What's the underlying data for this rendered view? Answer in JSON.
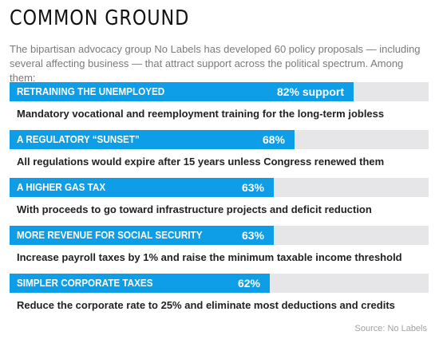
{
  "header": {
    "title": "COMMON GROUND",
    "intro": "The bipartisan advocacy group No Labels has developed 60 policy proposals — including several affecting business — that attract support across the political spectrum. Among them:"
  },
  "chart_data": {
    "type": "bar",
    "orientation": "horizontal",
    "xlim": [
      0,
      100
    ],
    "categories": [
      "RETRAINING THE UNEMPLOYED",
      "A REGULATORY “SUNSET”",
      "A HIGHER GAS TAX",
      "MORE REVENUE FOR SOCIAL SECURITY",
      "SIMPLER CORPORATE TAXES"
    ],
    "values": [
      82,
      68,
      63,
      63,
      62
    ],
    "value_labels": [
      "82% support",
      "68%",
      "63%",
      "63%",
      "62%"
    ],
    "descriptions": [
      "Mandatory vocational and reemployment training for the long-term jobless",
      "All regulations would expire after 15 years unless Congress renewed them",
      "With proceeds to go toward infrastructure projects and deficit reduction",
      "Increase payroll taxes by 1% and raise the minimum taxable income threshold",
      "Reduce the corporate rate to 25% and eliminate most deductions and credits"
    ],
    "bar_color": "#0e9ee8",
    "track_color": "#e6e6e8"
  },
  "footer": {
    "source": "Source: No Labels"
  }
}
